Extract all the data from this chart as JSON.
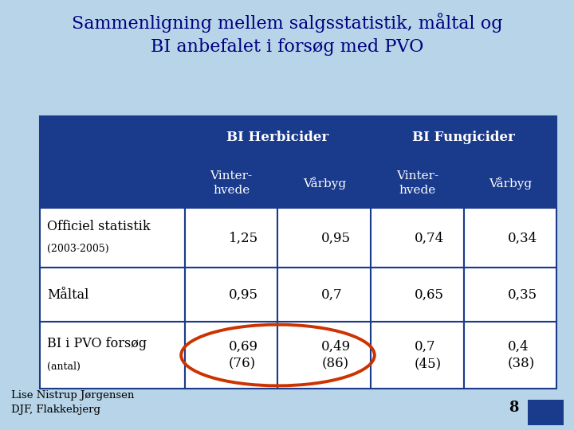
{
  "title_line1": "Sammenligning mellem salgsstatistik, måltal og",
  "title_line2": "BI anbefalet i forsøg med PVO",
  "slide_bg": "#b8d4e8",
  "table_header_bg": "#1a3a8c",
  "table_header_text": "#ffffff",
  "table_body_bg": "#ffffff",
  "table_border_color": "#1a3a8c",
  "title_color": "#000080",
  "footer_text1": "Lise Nistrup Jørgensen",
  "footer_text2": "DJF, Flakkebjerg",
  "page_number": "8",
  "col_headers_top": [
    "BI Herbicider",
    "BI Fungicider"
  ],
  "col_headers_sub": [
    "Vinter-\nhvede",
    "Vårbyg",
    "Vinter-\nhvede",
    "Vårbyg"
  ],
  "row_label_top": [
    "Officiel statistik",
    "Måltal",
    "BI i PVO forsøg"
  ],
  "row_label_sub": [
    "(2003-2005)",
    "",
    "(antal)"
  ],
  "data": [
    [
      "1,25",
      "0,95",
      "0,74",
      "0,34"
    ],
    [
      "0,95",
      "0,7",
      "0,65",
      "0,35"
    ],
    [
      "0,69\n(76)",
      "0,49\n(86)",
      "0,7\n(45)",
      "0,4\n(38)"
    ]
  ],
  "ellipse_color": "#cc3300"
}
